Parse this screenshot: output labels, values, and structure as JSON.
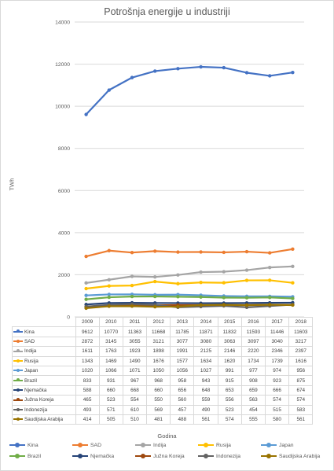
{
  "chart_data": {
    "type": "line",
    "title": "Potrošnja energije u industriji",
    "xlabel": "Godina",
    "ylabel": "TWh",
    "ylim": [
      0,
      14000
    ],
    "yticks": [
      "0",
      "2000",
      "4000",
      "6000",
      "8000",
      "10000",
      "12000",
      "14000"
    ],
    "x": [
      "2009",
      "2010",
      "2011",
      "2012",
      "2013",
      "2014",
      "2015",
      "2016",
      "2017",
      "2018"
    ],
    "grid": true,
    "legend_position": "bottom",
    "series": [
      {
        "name": "Kina",
        "color": "#4472c4",
        "values": [
          9612,
          10770,
          11363,
          11668,
          11785,
          11871,
          11832,
          11593,
          11446,
          11603
        ]
      },
      {
        "name": "SAD",
        "color": "#ed7d31",
        "values": [
          2872,
          3145,
          3055,
          3121,
          3077,
          3080,
          3063,
          3097,
          3040,
          3217
        ]
      },
      {
        "name": "Indija",
        "color": "#a5a5a5",
        "values": [
          1611,
          1763,
          1923,
          1898,
          1991,
          2125,
          2146,
          2220,
          2346,
          2397
        ]
      },
      {
        "name": "Rusija",
        "color": "#ffc000",
        "values": [
          1343,
          1469,
          1490,
          1676,
          1577,
          1634,
          1620,
          1734,
          1739,
          1616
        ]
      },
      {
        "name": "Japan",
        "color": "#5b9bd5",
        "values": [
          1020,
          1066,
          1071,
          1050,
          1056,
          1027,
          991,
          977,
          974,
          956
        ]
      },
      {
        "name": "Brazil",
        "color": "#70ad47",
        "values": [
          833,
          931,
          967,
          968,
          958,
          943,
          915,
          908,
          923,
          875
        ]
      },
      {
        "name": "Njemačka",
        "color": "#264478",
        "values": [
          588,
          660,
          668,
          660,
          656,
          648,
          653,
          659,
          666,
          674
        ]
      },
      {
        "name": "Južna Koreja",
        "color": "#9e480e",
        "values": [
          465,
          523,
          554,
          550,
          560,
          559,
          556,
          563,
          574,
          574
        ]
      },
      {
        "name": "Indonezija",
        "color": "#636363",
        "values": [
          493,
          571,
          610,
          569,
          457,
          490,
          523,
          454,
          515,
          583
        ]
      },
      {
        "name": "Saudijska Arabija",
        "color": "#997300",
        "values": [
          414,
          505,
          510,
          481,
          488,
          561,
          574,
          555,
          580,
          561
        ]
      }
    ]
  }
}
